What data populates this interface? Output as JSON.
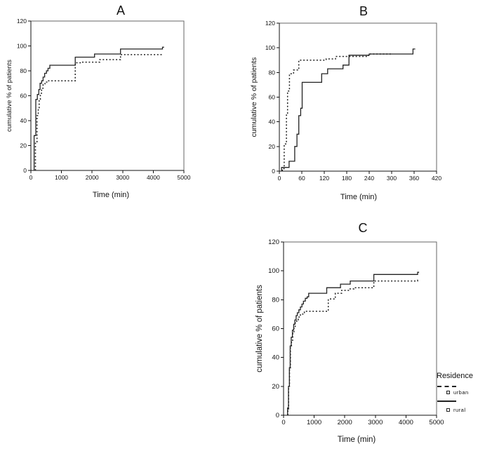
{
  "figure": {
    "background": "#ffffff",
    "stroke_color": "#222222"
  },
  "legend": {
    "title": "Residence",
    "items": [
      {
        "label": "urban",
        "line_style": "dashed",
        "marker": "open-square"
      },
      {
        "label": "rural",
        "line_style": "solid",
        "marker": "open-square"
      }
    ]
  },
  "chart_data": [
    {
      "id": "A",
      "type": "line",
      "step": true,
      "title": "A",
      "xlabel": "Time (min)",
      "ylabel": "cumulative % of patients",
      "xlim": [
        0,
        5000
      ],
      "ylim": [
        0,
        120
      ],
      "xticks": [
        0,
        1000,
        2000,
        3000,
        4000,
        5000
      ],
      "yticks": [
        0,
        20,
        40,
        60,
        80,
        100,
        120
      ],
      "grid": false,
      "series": [
        {
          "name": "urban",
          "style": "dashed",
          "points": [
            [
              150,
              23
            ],
            [
              200,
              44
            ],
            [
              240,
              50
            ],
            [
              270,
              57
            ],
            [
              310,
              62
            ],
            [
              350,
              66
            ],
            [
              400,
              69
            ],
            [
              460,
              71
            ],
            [
              560,
              72
            ],
            [
              1450,
              86.5
            ],
            [
              1650,
              87
            ],
            [
              2250,
              89
            ],
            [
              2930,
              93
            ]
          ],
          "end_time": 4330
        },
        {
          "name": "rural",
          "style": "solid",
          "points": [
            [
              105,
              28
            ],
            [
              160,
              57
            ],
            [
              210,
              61
            ],
            [
              260,
              65
            ],
            [
              300,
              70
            ],
            [
              350,
              72
            ],
            [
              400,
              75
            ],
            [
              450,
              78
            ],
            [
              510,
              80
            ],
            [
              560,
              82
            ],
            [
              620,
              84.5
            ],
            [
              1450,
              91
            ],
            [
              2080,
              93.5
            ],
            [
              2930,
              97.5
            ],
            [
              4300,
              99
            ]
          ],
          "end_time": 4350
        }
      ]
    },
    {
      "id": "B",
      "type": "line",
      "step": true,
      "title": "B",
      "xlabel": "Time  (min)",
      "ylabel": "cumulative % of patients",
      "xlim": [
        0,
        420
      ],
      "ylim": [
        0,
        120
      ],
      "xticks": [
        0,
        60,
        120,
        180,
        240,
        300,
        360,
        420
      ],
      "yticks": [
        0,
        20,
        40,
        60,
        80,
        100,
        120
      ],
      "grid": false,
      "series": [
        {
          "name": "urban",
          "style": "dashed",
          "points": [
            [
              8,
              2
            ],
            [
              13,
              22
            ],
            [
              19,
              46
            ],
            [
              22,
              65
            ],
            [
              27,
              79
            ],
            [
              38,
              82
            ],
            [
              52,
              90
            ],
            [
              125,
              91
            ],
            [
              150,
              93
            ],
            [
              238,
              95
            ]
          ],
          "end_time": 300
        },
        {
          "name": "rural",
          "style": "solid",
          "points": [
            [
              6,
              3
            ],
            [
              26,
              8
            ],
            [
              41,
              20
            ],
            [
              47,
              30
            ],
            [
              52,
              45
            ],
            [
              57,
              51
            ],
            [
              61,
              72
            ],
            [
              113,
              79
            ],
            [
              129,
              83
            ],
            [
              170,
              86
            ],
            [
              186,
              94
            ],
            [
              240,
              95
            ],
            [
              357,
              99
            ]
          ],
          "end_time": 363
        }
      ]
    },
    {
      "id": "C",
      "type": "line",
      "step": true,
      "title": "C",
      "xlabel": "Time (min)",
      "ylabel": "cumulative % of patients",
      "xlim": [
        0,
        5000
      ],
      "ylim": [
        0,
        120
      ],
      "xticks": [
        0,
        1000,
        2000,
        3000,
        4000,
        5000
      ],
      "yticks": [
        0,
        20,
        40,
        60,
        80,
        100,
        120
      ],
      "grid": false,
      "series": [
        {
          "name": "urban",
          "style": "dashed",
          "points": [
            [
              140,
              4
            ],
            [
              165,
              20
            ],
            [
              195,
              32
            ],
            [
              225,
              47
            ],
            [
              260,
              52
            ],
            [
              300,
              57
            ],
            [
              340,
              61
            ],
            [
              380,
              64
            ],
            [
              430,
              66
            ],
            [
              480,
              68
            ],
            [
              550,
              70
            ],
            [
              630,
              71
            ],
            [
              680,
              72
            ],
            [
              1460,
              80.5
            ],
            [
              1690,
              84.5
            ],
            [
              1900,
              86.5
            ],
            [
              2140,
              87.5
            ],
            [
              2300,
              88.3
            ],
            [
              2950,
              93
            ],
            [
              4380,
              93.5
            ]
          ],
          "end_time": 4430
        },
        {
          "name": "rural",
          "style": "solid",
          "points": [
            [
              130,
              5
            ],
            [
              160,
              20
            ],
            [
              190,
              33
            ],
            [
              215,
              48
            ],
            [
              250,
              54
            ],
            [
              290,
              59
            ],
            [
              330,
              63
            ],
            [
              370,
              66
            ],
            [
              410,
              69
            ],
            [
              450,
              71
            ],
            [
              500,
              73
            ],
            [
              550,
              75
            ],
            [
              600,
              77
            ],
            [
              650,
              79
            ],
            [
              710,
              81
            ],
            [
              770,
              82
            ],
            [
              820,
              84.5
            ],
            [
              1410,
              88.3
            ],
            [
              1860,
              90.8
            ],
            [
              2180,
              93
            ],
            [
              2950,
              97.5
            ],
            [
              4380,
              99
            ]
          ],
          "end_time": 4430
        }
      ]
    }
  ]
}
